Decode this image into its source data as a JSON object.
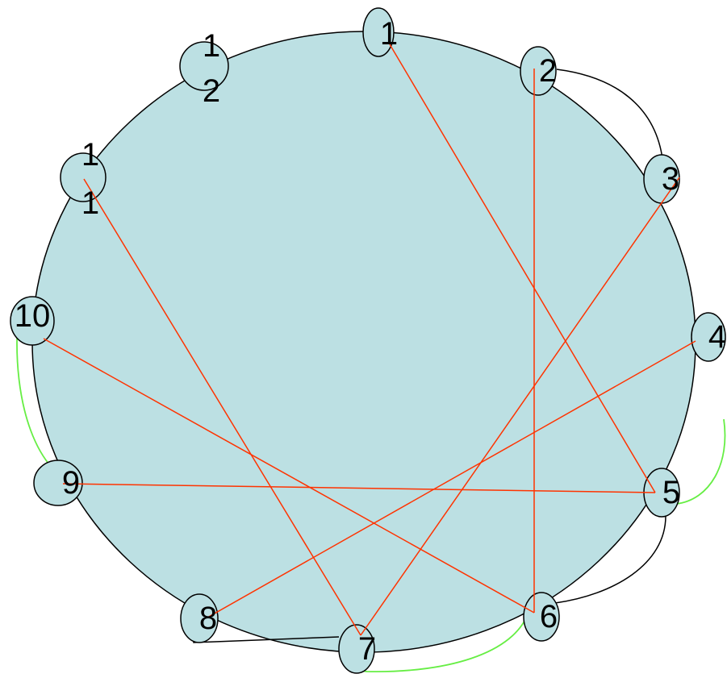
{
  "colors": {
    "background": "#ffffff",
    "circle_fill": "#bce0e3",
    "outline": "#000000",
    "red_chord": "#ff3300",
    "green_arc": "#66ee44",
    "black_arc": "#000000"
  },
  "nodes": [
    {
      "id": "1",
      "lines": [
        "1"
      ]
    },
    {
      "id": "2",
      "lines": [
        "2"
      ]
    },
    {
      "id": "3",
      "lines": [
        "3"
      ]
    },
    {
      "id": "4",
      "lines": [
        "4"
      ]
    },
    {
      "id": "5",
      "lines": [
        "5"
      ]
    },
    {
      "id": "6",
      "lines": [
        "6"
      ]
    },
    {
      "id": "7",
      "lines": [
        "7"
      ]
    },
    {
      "id": "8",
      "lines": [
        "8"
      ]
    },
    {
      "id": "9",
      "lines": [
        "9"
      ]
    },
    {
      "id": "10",
      "lines": [
        "10"
      ]
    },
    {
      "id": "11",
      "lines": [
        "1",
        "1"
      ]
    },
    {
      "id": "12",
      "lines": [
        "1",
        "2"
      ]
    }
  ],
  "red_chords": [
    [
      "1",
      "5"
    ],
    [
      "2",
      "6"
    ],
    [
      "3",
      "7"
    ],
    [
      "4",
      "8"
    ],
    [
      "5",
      "9"
    ],
    [
      "6",
      "10"
    ],
    [
      "7",
      "11"
    ]
  ],
  "green_arcs": [
    [
      "4",
      "5"
    ],
    [
      "6",
      "7"
    ],
    [
      "9",
      "10"
    ]
  ],
  "black_arcs": [
    [
      "2",
      "3"
    ],
    [
      "5",
      "6"
    ],
    [
      "7",
      "8"
    ]
  ]
}
